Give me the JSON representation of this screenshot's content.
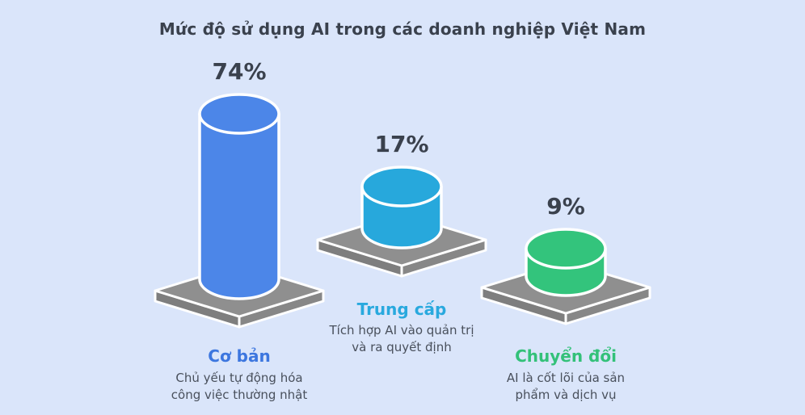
{
  "title": "Mức độ sử dụng AI trong các doanh nghiệp Việt Nam",
  "colors": {
    "background": "#DAE5FA",
    "title_text": "#3A414D",
    "value_text": "#3A414D",
    "description_text": "#49505C",
    "platform_top": "#8F8F8F",
    "platform_side_left": "#7E7E7E",
    "platform_side_right": "#878787",
    "outline": "#FFFFFF"
  },
  "chart_data": {
    "type": "bar",
    "style": "3d-cylinder-on-platform",
    "title": "Mức độ sử dụng AI trong các doanh nghiệp Việt Nam",
    "categories": [
      "Cơ bản",
      "Trung cấp",
      "Chuyển đổi"
    ],
    "values": [
      74,
      17,
      9
    ],
    "value_labels": [
      "74%",
      "17%",
      "9%"
    ],
    "descriptions": [
      "Chủ yếu tự động hóa công việc thường nhật",
      "Tích hợp AI vào quản trị và ra quyết định",
      "AI là cốt lõi của sản phẩm và dịch vụ"
    ],
    "desc_lines": [
      [
        "Chủ yếu tự động hóa",
        "công việc thường nhật"
      ],
      [
        "Tích hợp AI vào quản trị",
        "và ra quyết định"
      ],
      [
        "AI là cốt lõi của sản",
        "phẩm và dịch vụ"
      ]
    ],
    "series_colors": [
      "#4C86E8",
      "#27A8DC",
      "#33C47C"
    ],
    "label_colors": [
      "#3C76DF",
      "#29A9DE",
      "#33C179"
    ],
    "legend": "none",
    "grid": false
  }
}
